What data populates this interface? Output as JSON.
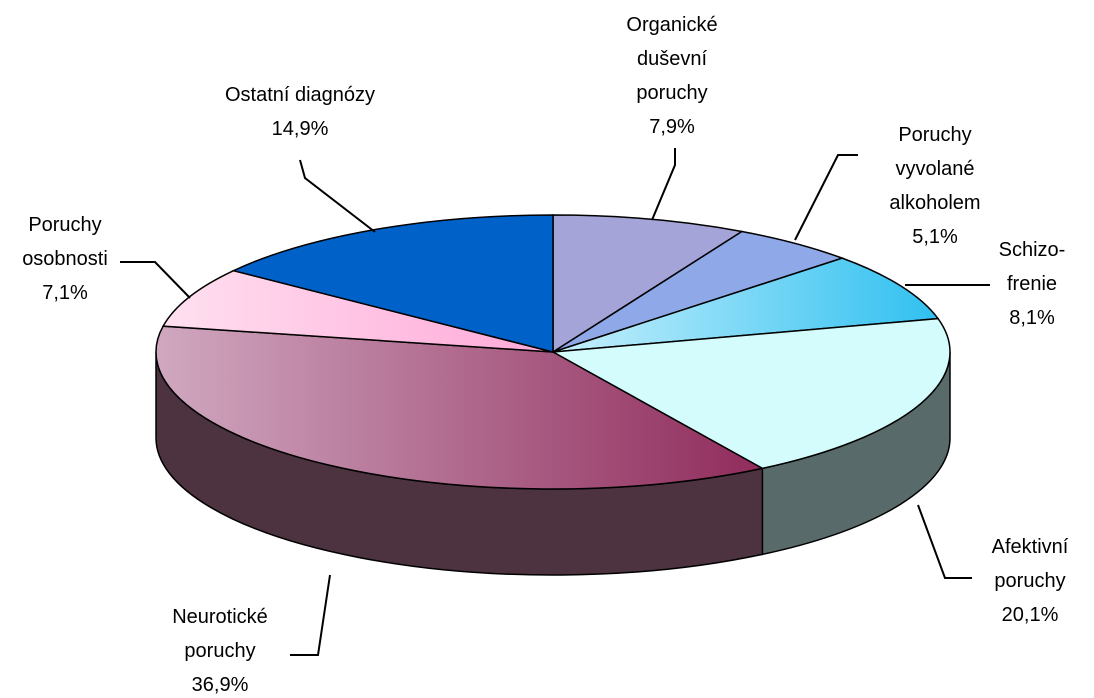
{
  "chart_data": {
    "type": "pie3d",
    "categories": [
      "Organické duševní poruchy",
      "Poruchy vyvolané alkoholem",
      "Schizo-frenie",
      "Afektivní poruchy",
      "Neurotické poruchy",
      "Poruchy osobnosti",
      "Ostatní diagnózy"
    ],
    "values": [
      7.9,
      5.1,
      8.1,
      20.1,
      36.9,
      7.1,
      14.9
    ],
    "value_labels": [
      "7,9%",
      "5,1%",
      "8,1%",
      "20,1%",
      "36,9%",
      "7,1%",
      "14,9%"
    ],
    "colors": [
      "#a4a4d8",
      "#8ea8e8",
      "#48c8f0",
      "#d4fcfc",
      "#b87898",
      "#ffbce0",
      "#0062c8"
    ]
  }
}
